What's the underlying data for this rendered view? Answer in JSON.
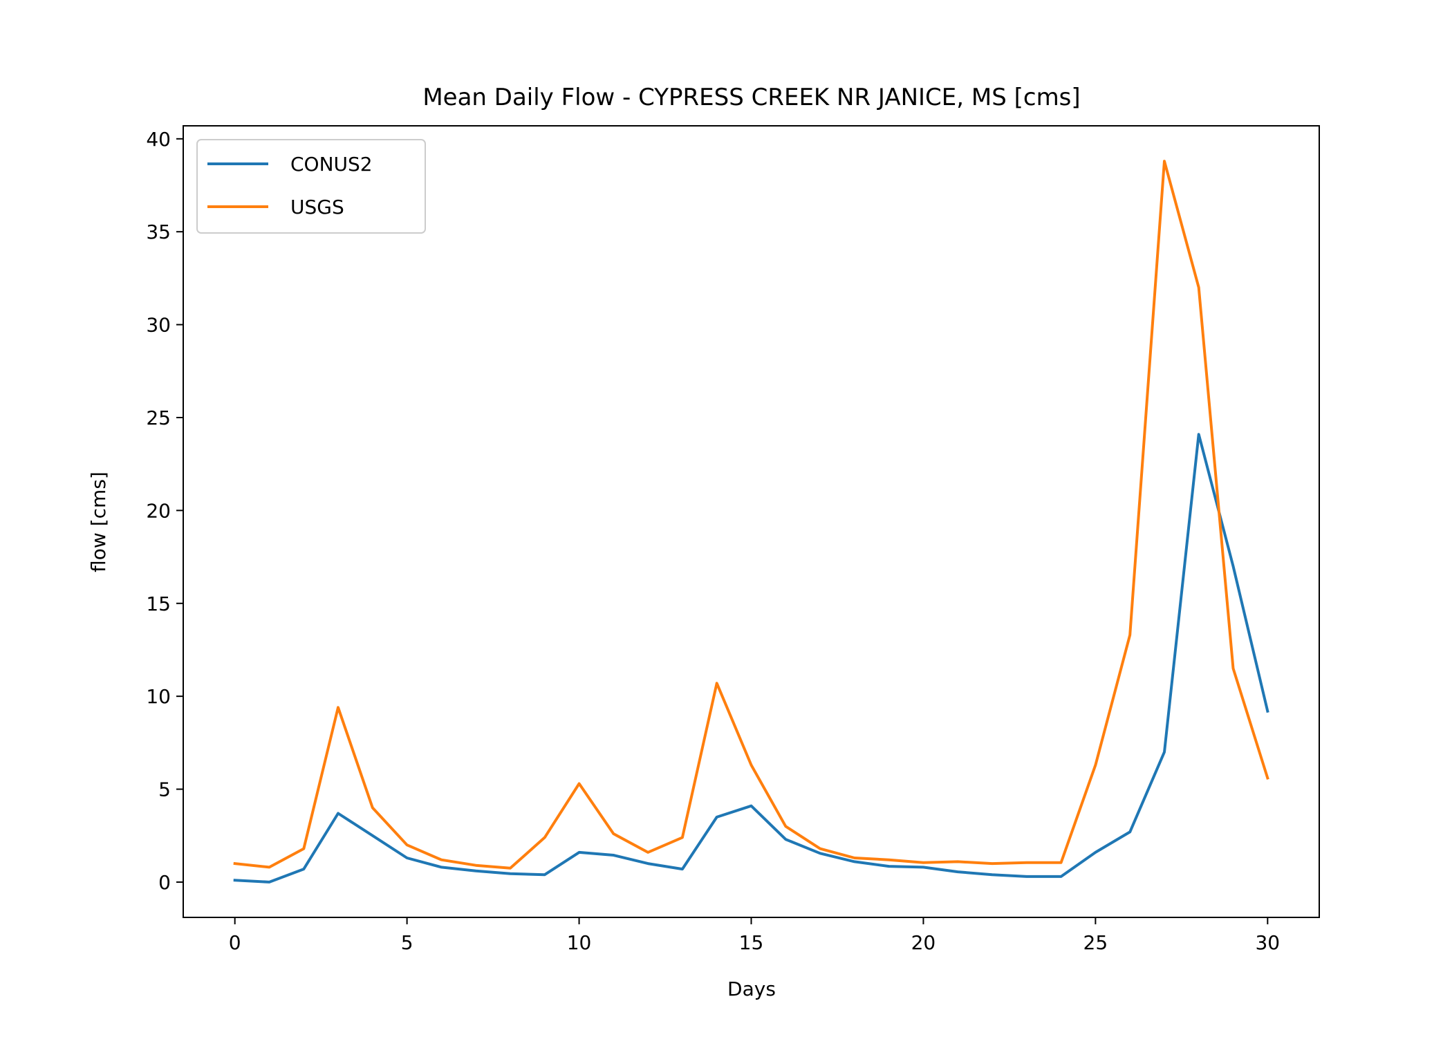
{
  "chart_data": {
    "type": "line",
    "title": "Mean Daily Flow - CYPRESS CREEK NR JANICE, MS [cms]",
    "xlabel": "Days",
    "ylabel": "flow [cms]",
    "xlim": [
      -1.5,
      31.5
    ],
    "ylim": [
      -1.9,
      40.7
    ],
    "xticks": [
      0,
      5,
      10,
      15,
      20,
      25,
      30
    ],
    "yticks": [
      0,
      5,
      10,
      15,
      20,
      25,
      30,
      35,
      40
    ],
    "grid": false,
    "legend_position": "upper-left",
    "x": [
      0,
      1,
      2,
      3,
      4,
      5,
      6,
      7,
      8,
      9,
      10,
      11,
      12,
      13,
      14,
      15,
      16,
      17,
      18,
      19,
      20,
      21,
      22,
      23,
      24,
      25,
      26,
      27,
      28,
      29,
      30
    ],
    "series": [
      {
        "name": "CONUS2",
        "color": "#1f77b4",
        "values": [
          0.1,
          0.0,
          0.7,
          3.7,
          2.5,
          1.3,
          0.8,
          0.6,
          0.45,
          0.4,
          1.6,
          1.45,
          1.0,
          0.7,
          3.5,
          4.1,
          2.3,
          1.55,
          1.1,
          0.85,
          0.8,
          0.55,
          0.4,
          0.3,
          0.3,
          1.6,
          2.7,
          7.0,
          24.1,
          17.0,
          9.2
        ]
      },
      {
        "name": "USGS",
        "color": "#ff7f0e",
        "values": [
          1.0,
          0.8,
          1.8,
          9.4,
          4.0,
          2.0,
          1.2,
          0.9,
          0.75,
          2.4,
          5.3,
          2.6,
          1.6,
          2.4,
          10.7,
          6.3,
          3.0,
          1.8,
          1.3,
          1.2,
          1.05,
          1.1,
          1.0,
          1.05,
          1.05,
          6.3,
          13.3,
          38.8,
          32.0,
          11.5,
          5.6
        ]
      }
    ]
  }
}
